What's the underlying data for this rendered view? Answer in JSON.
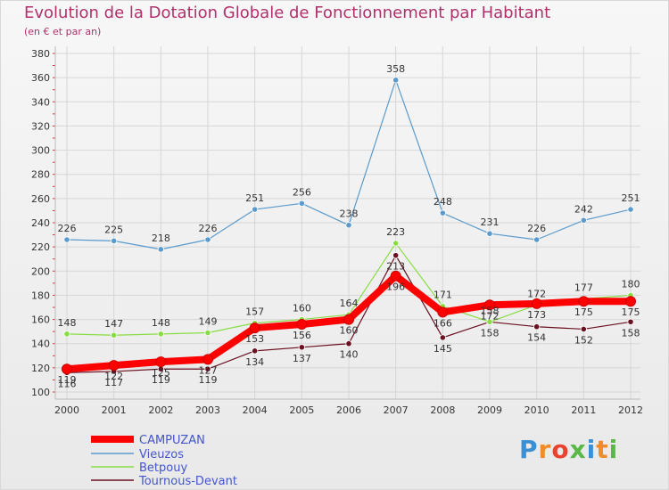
{
  "header": {
    "title": "Evolution de la Dotation Globale de Fonctionnement par Habitant",
    "subtitle": "(en € et par an)"
  },
  "logo": {
    "text": "Proxiti"
  },
  "chart_data": {
    "type": "line",
    "x": [
      "2000",
      "2001",
      "2002",
      "2003",
      "2004",
      "2005",
      "2006",
      "2007",
      "2008",
      "2009",
      "2010",
      "2011",
      "2012"
    ],
    "ylim": [
      100,
      380
    ],
    "yticks": [
      100,
      120,
      140,
      160,
      180,
      200,
      220,
      240,
      260,
      280,
      300,
      320,
      340,
      360,
      380
    ],
    "grid": true,
    "legend_position": "bottom-left",
    "series": [
      {
        "name": "CAMPUZAN",
        "color": "#ff0000",
        "values": [
          119,
          122,
          125,
          127,
          153,
          156,
          160,
          196,
          166,
          172,
          173,
          175,
          175
        ]
      },
      {
        "name": "Vieuzos",
        "color": "#5a9acc",
        "values": [
          226,
          225,
          218,
          226,
          251,
          256,
          238,
          358,
          248,
          231,
          226,
          242,
          251
        ]
      },
      {
        "name": "Betpouy",
        "color": "#88dd44",
        "values": [
          148,
          147,
          148,
          149,
          157,
          160,
          164,
          223,
          171,
          158,
          172,
          177,
          180
        ]
      },
      {
        "name": "Tournous-Devant",
        "color": "#6a1020",
        "values": [
          116,
          117,
          119,
          119,
          134,
          137,
          140,
          213,
          145,
          158,
          154,
          152,
          158
        ]
      }
    ]
  }
}
